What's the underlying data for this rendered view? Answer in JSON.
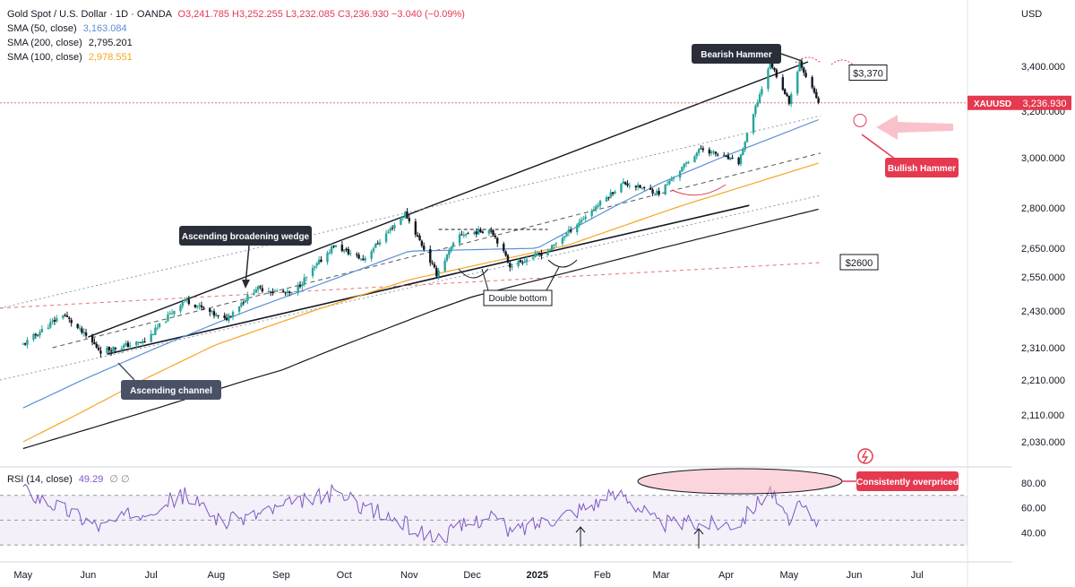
{
  "legend": {
    "symbol": "Gold Spot / U.S. Dollar · 1D · OANDA",
    "ohlc": "O3,241.785  H3,252.255  L3,232.085  C3,236.930  −3.040 (−0.09%)",
    "sma50_label": "SMA (50, close)",
    "sma50_value": "3,163.084",
    "sma200_label": "SMA (200, close)",
    "sma200_value": "2,795.201",
    "sma100_label": "SMA (100, close)",
    "sma100_value": "2,978.551",
    "rsi_label": "RSI (14, close)",
    "rsi_value": "49.29",
    "rsi_extra": "∅  ∅"
  },
  "currency": "USD",
  "ticker_label": "XAUUSD",
  "colors": {
    "up": "#26a69a",
    "down": "#131722",
    "sma50": "#5b8fd6",
    "sma100": "#f5a623",
    "sma200": "#131722",
    "rsi": "#7e57c2",
    "annot": "#e53950"
  },
  "annotations": {
    "bearish_hammer": "Bearish Hammer",
    "bullish_hammer": "Bullish Hammer",
    "wedge": "Ascending broadening wedge",
    "channel": "Ascending channel",
    "double_bottom": "Double bottom",
    "overpriced": "Consistently overpriced",
    "level_3370": "$3,370",
    "level_2600": "$2600"
  },
  "chart_data": {
    "type": "candlestick",
    "x_labels": [
      "May",
      "Jun",
      "Jul",
      "Aug",
      "Sep",
      "Oct",
      "Nov",
      "Dec",
      "2025",
      "Feb",
      "Mar",
      "Apr",
      "May",
      "Jun",
      "Jul"
    ],
    "y_ticks": [
      "3,400.000",
      "3,200.000",
      "3,000.000",
      "2,800.000",
      "2,650.000",
      "2,550.000",
      "2,430.000",
      "2,310.000",
      "2,210.000",
      "2,110.000",
      "2,030.000"
    ],
    "last_price": "3,236.930",
    "rsi_ticks": [
      "80.00",
      "60.00",
      "40.00"
    ],
    "rsi_levels": [
      70,
      50,
      30
    ],
    "horizontal_levels": [
      3370,
      2600
    ],
    "price_path": [
      [
        "2024-05-01",
        2320
      ],
      [
        "2024-05-20",
        2420
      ],
      [
        "2024-06-07",
        2300
      ],
      [
        "2024-06-28",
        2330
      ],
      [
        "2024-07-17",
        2470
      ],
      [
        "2024-08-05",
        2400
      ],
      [
        "2024-08-20",
        2510
      ],
      [
        "2024-09-06",
        2490
      ],
      [
        "2024-09-26",
        2660
      ],
      [
        "2024-10-10",
        2610
      ],
      [
        "2024-10-30",
        2780
      ],
      [
        "2024-11-14",
        2560
      ],
      [
        "2024-11-25",
        2700
      ],
      [
        "2024-12-10",
        2720
      ],
      [
        "2024-12-19",
        2590
      ],
      [
        "2025-01-06",
        2640
      ],
      [
        "2025-01-24",
        2770
      ],
      [
        "2025-02-11",
        2900
      ],
      [
        "2025-02-28",
        2860
      ],
      [
        "2025-03-20",
        3040
      ],
      [
        "2025-04-07",
        2980
      ],
      [
        "2025-04-22",
        3420
      ],
      [
        "2025-05-01",
        3240
      ],
      [
        "2025-05-06",
        3420
      ],
      [
        "2025-05-15",
        3236.93
      ]
    ],
    "sma50_path": [
      [
        "2024-05-01",
        2130
      ],
      [
        "2024-08-01",
        2390
      ],
      [
        "2024-11-01",
        2640
      ],
      [
        "2025-01-01",
        2650
      ],
      [
        "2025-03-01",
        2900
      ],
      [
        "2025-05-15",
        3163.084
      ]
    ],
    "sma100_path": [
      [
        "2024-05-01",
        2030
      ],
      [
        "2024-08-01",
        2320
      ],
      [
        "2024-11-01",
        2540
      ],
      [
        "2025-01-15",
        2660
      ],
      [
        "2025-03-15",
        2820
      ],
      [
        "2025-05-15",
        2978.551
      ]
    ],
    "sma200_path": [
      [
        "2024-05-01",
        2010
      ],
      [
        "2024-09-01",
        2240
      ],
      [
        "2024-12-01",
        2480
      ],
      [
        "2025-03-01",
        2650
      ],
      [
        "2025-05-15",
        2795.201
      ]
    ],
    "rsi_path": [
      [
        "2024-05-01",
        75
      ],
      [
        "2024-06-07",
        45
      ],
      [
        "2024-07-17",
        70
      ],
      [
        "2024-08-05",
        48
      ],
      [
        "2024-09-26",
        72
      ],
      [
        "2024-11-14",
        35
      ],
      [
        "2024-12-10",
        55
      ],
      [
        "2024-12-19",
        40
      ],
      [
        "2025-02-11",
        72
      ],
      [
        "2025-02-28",
        47
      ],
      [
        "2025-04-07",
        48
      ],
      [
        "2025-04-22",
        76
      ],
      [
        "2025-05-01",
        45
      ],
      [
        "2025-05-06",
        62
      ],
      [
        "2025-05-15",
        49.29
      ]
    ]
  }
}
